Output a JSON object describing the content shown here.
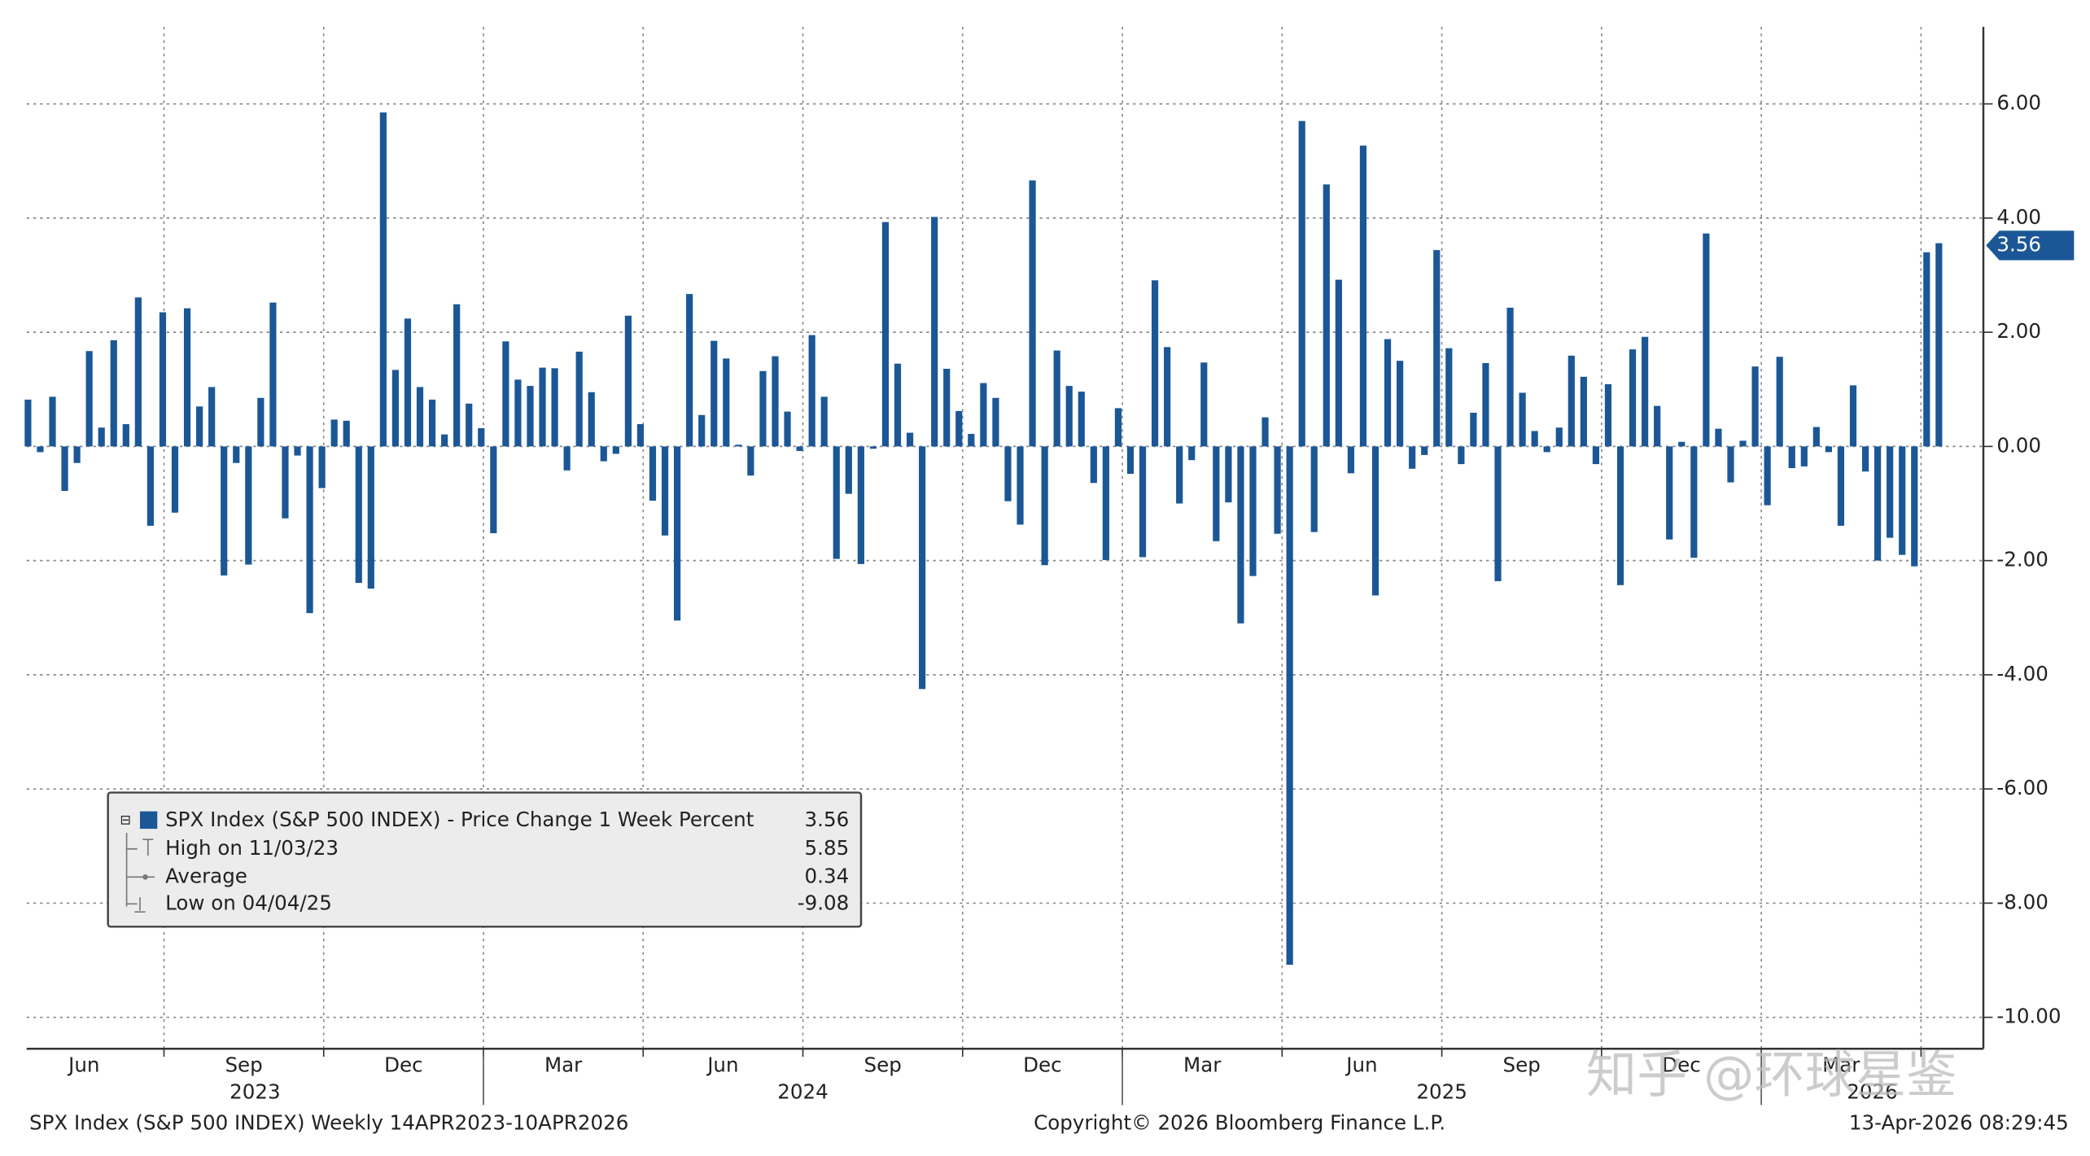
{
  "chart_data": {
    "type": "bar",
    "color": "#1b5796",
    "values": [
      0.82,
      -0.1,
      0.87,
      -0.78,
      -0.29,
      1.67,
      0.33,
      1.86,
      0.39,
      2.61,
      -1.39,
      2.35,
      -1.16,
      2.42,
      0.7,
      1.04,
      -2.26,
      -0.29,
      -2.07,
      0.85,
      2.52,
      -1.26,
      -0.16,
      -2.92,
      -0.73,
      0.47,
      0.45,
      -2.39,
      -2.49,
      5.85,
      1.34,
      2.24,
      1.04,
      0.82,
      0.21,
      2.49,
      0.75,
      0.32,
      -1.52,
      1.84,
      1.17,
      1.06,
      1.38,
      1.37,
      -0.42,
      1.66,
      0.95,
      -0.26,
      -0.13,
      2.29,
      0.39,
      -0.95,
      -1.56,
      -3.05,
      2.67,
      0.55,
      1.85,
      1.54,
      0.03,
      -0.51,
      1.32,
      1.58,
      0.61,
      -0.08,
      1.95,
      0.87,
      -1.97,
      -0.83,
      -2.06,
      -0.04,
      3.93,
      1.45,
      0.24,
      -4.25,
      4.02,
      1.36,
      0.62,
      0.22,
      1.11,
      0.85,
      -0.96,
      -1.37,
      4.66,
      -2.08,
      1.68,
      1.06,
      0.96,
      -0.64,
      -1.99,
      0.67,
      -0.48,
      -1.94,
      2.91,
      1.74,
      -1.0,
      -0.24,
      1.47,
      -1.66,
      -0.98,
      -3.1,
      -2.27,
      0.51,
      -1.53,
      -9.08,
      5.7,
      -1.5,
      4.59,
      2.92,
      -0.47,
      5.27,
      -2.61,
      1.88,
      1.5,
      -0.39,
      -0.15,
      3.44,
      1.72,
      -0.31,
      0.59,
      1.46,
      -2.36,
      2.43,
      0.94,
      0.27,
      -0.1,
      0.33,
      1.59,
      1.22,
      -0.31,
      1.09,
      -2.43,
      1.7,
      1.92,
      0.71,
      -1.63,
      0.08,
      -1.95,
      3.73,
      0.31,
      -0.63,
      0.1,
      1.4,
      -1.03,
      1.57,
      -0.38,
      -0.35,
      0.34,
      -0.1,
      -1.39,
      1.07,
      -0.44,
      -2.0,
      -1.6,
      -1.9,
      -2.1,
      3.4,
      3.56
    ],
    "ylim": [
      -10.55,
      7.35
    ],
    "yticks": [
      {
        "value": 6,
        "label": "6.00"
      },
      {
        "value": 4,
        "label": "4.00"
      },
      {
        "value": 2,
        "label": "2.00"
      },
      {
        "value": 0,
        "label": "0.00"
      },
      {
        "value": -2,
        "label": "-2.00"
      },
      {
        "value": -4,
        "label": "-4.00"
      },
      {
        "value": -6,
        "label": "-6.00"
      },
      {
        "value": -8,
        "label": "-8.00"
      },
      {
        "value": -10,
        "label": "-10.00"
      }
    ],
    "grid": true,
    "x_month_labels": [
      "Jun",
      "Sep",
      "Dec",
      "Mar",
      "Jun",
      "Sep",
      "Dec",
      "Mar",
      "Jun",
      "Sep",
      "Dec",
      "Mar"
    ],
    "x_year_labels": [
      "2023",
      "2024",
      "2025",
      "2026"
    ],
    "legend": [
      {
        "label": "SPX Index (S&P 500 INDEX) - Price Change 1 Week Percent",
        "value": 3.56
      },
      {
        "label": "High on 11/03/23",
        "value": 5.85
      },
      {
        "label": "Average",
        "value": 0.34
      },
      {
        "label": "Low on 04/04/25",
        "value": -9.08
      }
    ],
    "footer_left": "SPX Index (S&P 500 INDEX) Weekly 14APR2023-10APR2026",
    "footer_center": "Copyright© 2026 Bloomberg Finance L.P.",
    "footer_right": "13-Apr-2026 08:29:45",
    "watermark": "知乎 @环球星鉴"
  }
}
